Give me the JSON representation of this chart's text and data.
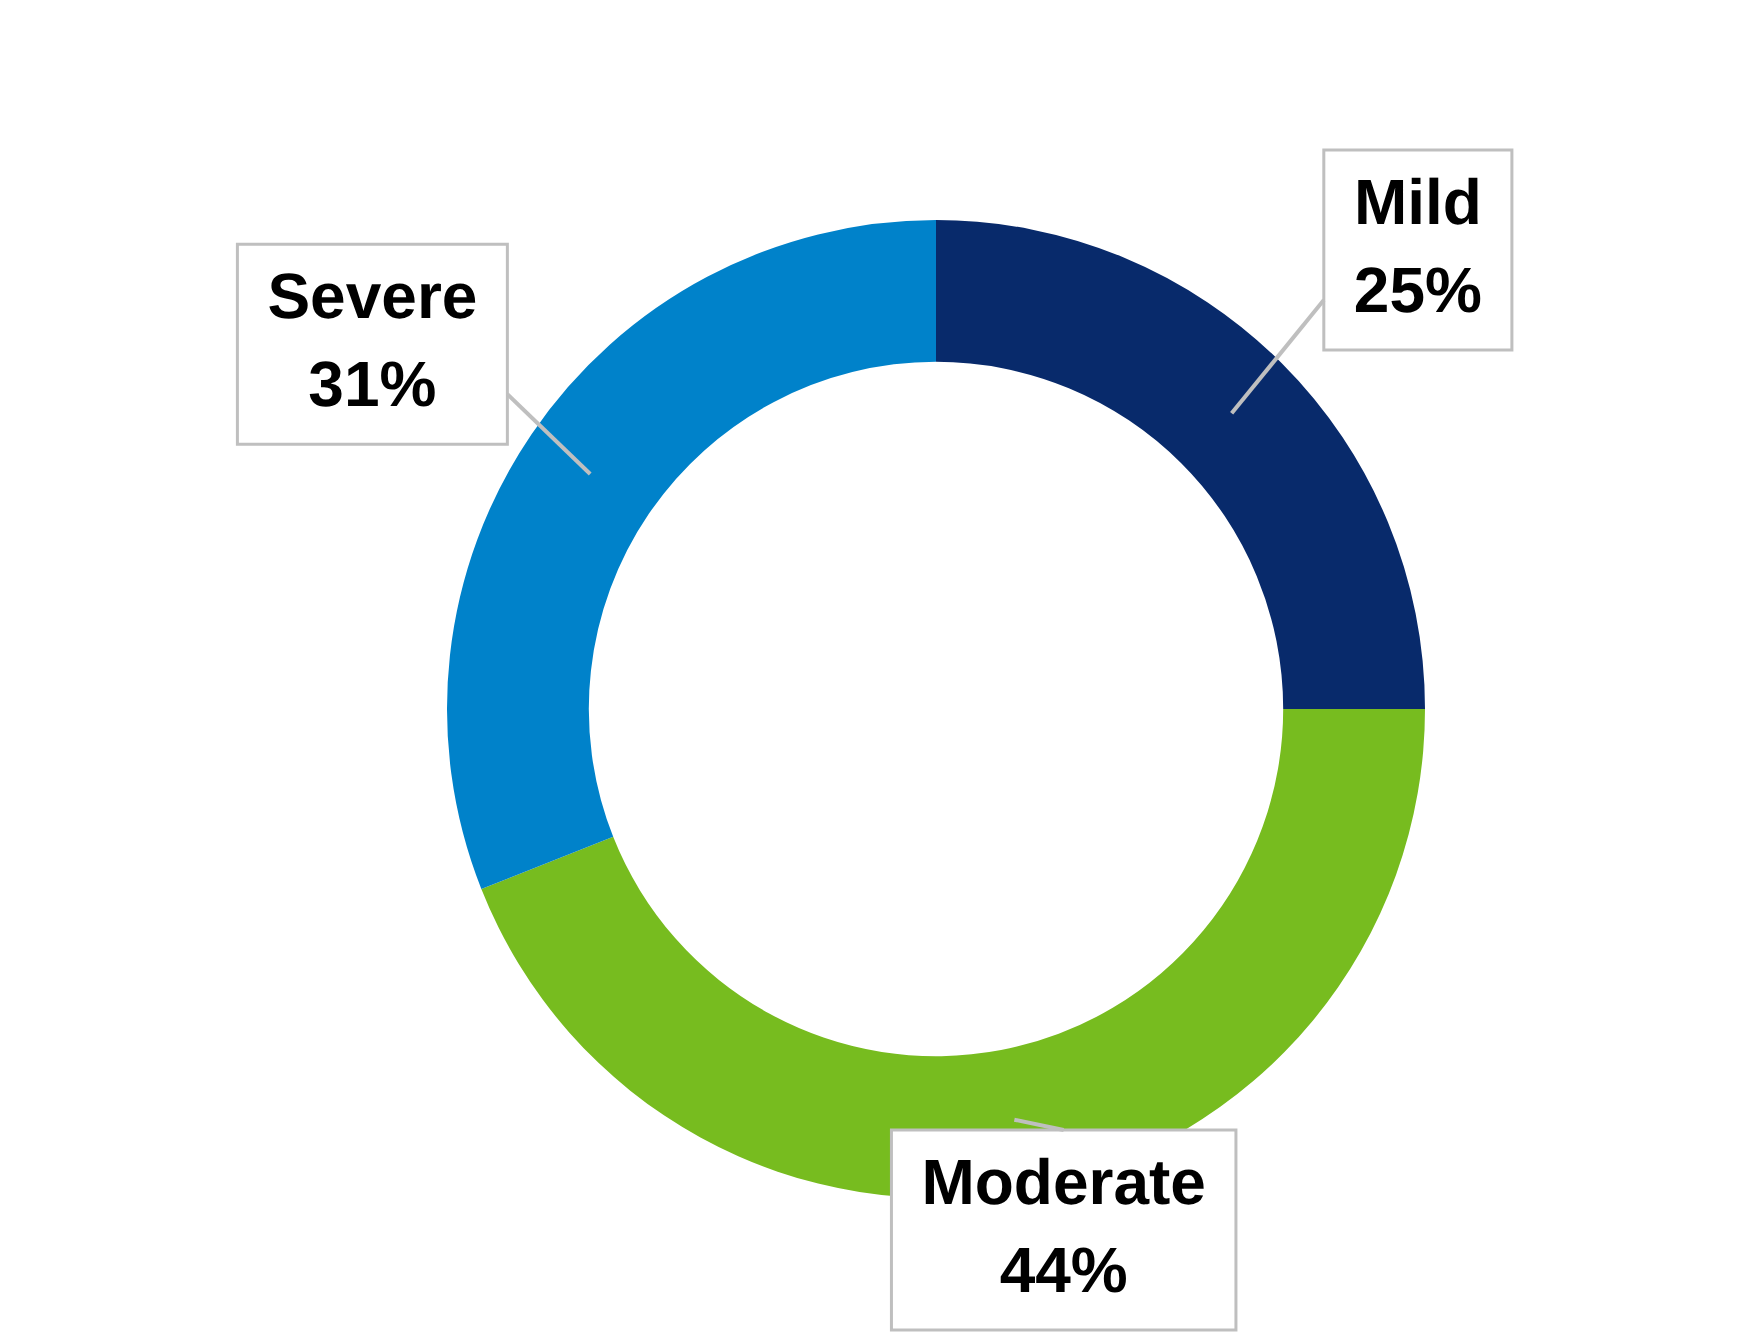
{
  "chart_data": {
    "type": "donut",
    "categories": [
      "Mild",
      "Moderate",
      "Severe"
    ],
    "values": [
      25,
      44,
      31
    ],
    "value_labels": [
      "25%",
      "44%",
      "31%"
    ],
    "colors": [
      "#082a6b",
      "#77bc1f",
      "#0082ca"
    ],
    "legend": false
  }
}
